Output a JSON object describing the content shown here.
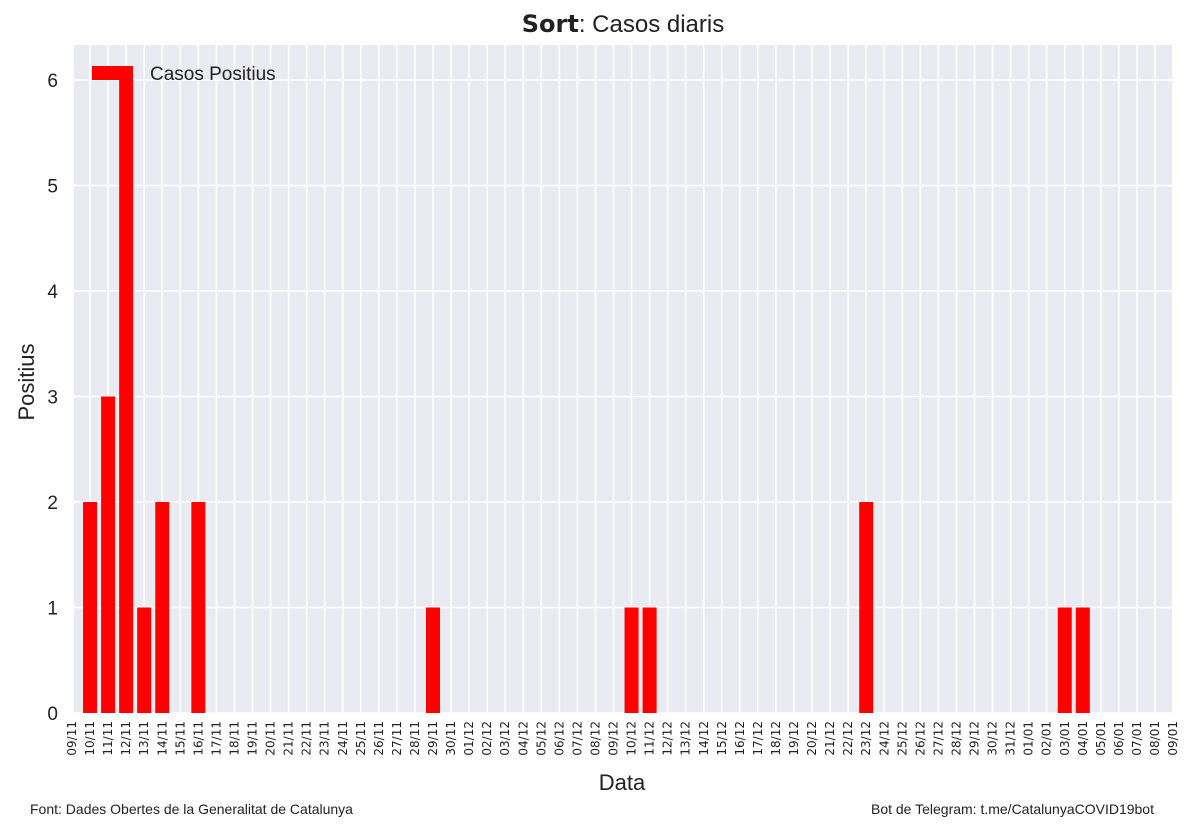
{
  "chart_data": {
    "type": "bar",
    "title_bold": "Sort",
    "title_rest": ": Casos diaris",
    "xlabel": "Data",
    "ylabel": "Positius",
    "ylim": [
      0,
      6.3
    ],
    "yticks": [
      "0",
      "1",
      "2",
      "3",
      "4",
      "5",
      "6"
    ],
    "grid": true,
    "legend_position": "top-left",
    "bar_color": "#ff0000",
    "background_color": "#eaeaf2",
    "series": [
      {
        "name": "Casos Positius"
      }
    ],
    "categories": [
      "09/11",
      "10/11",
      "11/11",
      "12/11",
      "13/11",
      "14/11",
      "15/11",
      "16/11",
      "17/11",
      "18/11",
      "19/11",
      "20/11",
      "21/11",
      "22/11",
      "23/11",
      "24/11",
      "25/11",
      "26/11",
      "27/11",
      "28/11",
      "29/11",
      "30/11",
      "01/12",
      "02/12",
      "03/12",
      "04/12",
      "05/12",
      "06/12",
      "07/12",
      "08/12",
      "09/12",
      "10/12",
      "11/12",
      "12/12",
      "13/12",
      "14/12",
      "15/12",
      "16/12",
      "17/12",
      "18/12",
      "19/12",
      "20/12",
      "21/12",
      "22/12",
      "23/12",
      "24/12",
      "25/12",
      "26/12",
      "27/12",
      "28/12",
      "29/12",
      "30/12",
      "31/12",
      "01/01",
      "02/01",
      "03/01",
      "04/01",
      "05/01",
      "06/01",
      "07/01",
      "08/01",
      "09/01"
    ],
    "values": [
      0,
      2,
      3,
      6,
      1,
      2,
      0,
      2,
      0,
      0,
      0,
      0,
      0,
      0,
      0,
      0,
      0,
      0,
      0,
      0,
      1,
      0,
      0,
      0,
      0,
      0,
      0,
      0,
      0,
      0,
      0,
      1,
      1,
      0,
      0,
      0,
      0,
      0,
      0,
      0,
      0,
      0,
      0,
      0,
      2,
      0,
      0,
      0,
      0,
      0,
      0,
      0,
      0,
      0,
      0,
      1,
      1,
      0,
      0,
      0,
      0,
      0
    ]
  },
  "footer": {
    "source": "Font: Dades Obertes de la Generalitat de Catalunya",
    "bot": "Bot de Telegram: t.me/CatalunyaCOVID19bot"
  }
}
